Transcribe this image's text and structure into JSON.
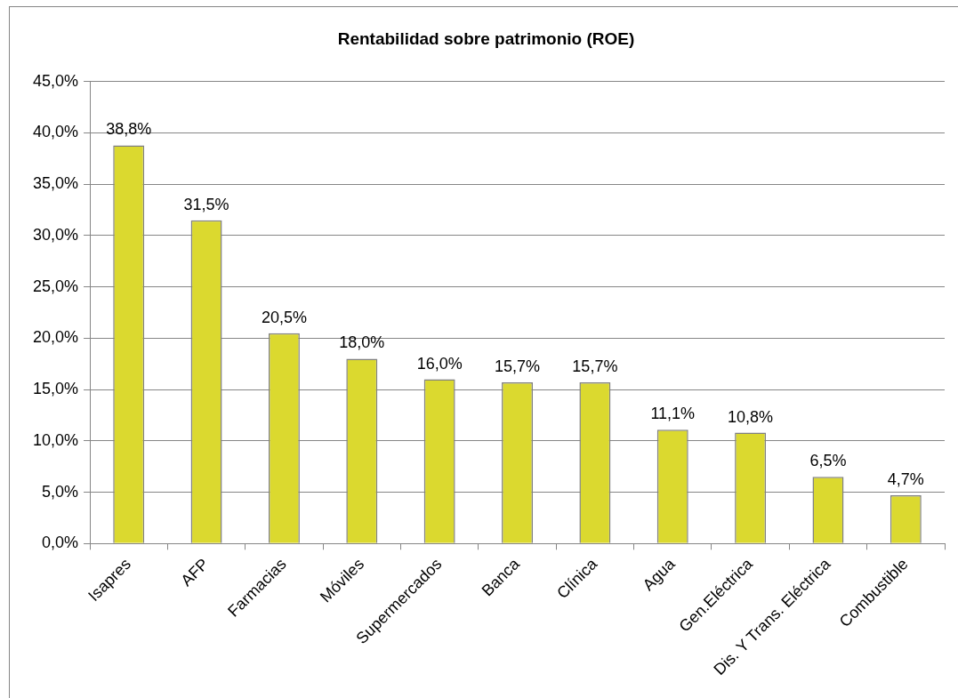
{
  "chart_data": {
    "type": "bar",
    "title": "Rentabilidad sobre patrimonio (ROE)",
    "categories": [
      "Isapres",
      "AFP",
      "Farmacias",
      "Móviles",
      "Supermercados",
      "Banca",
      "Clínica",
      "Agua",
      "Gen.Eléctrica",
      "Dis. Y Trans. Eléctrica",
      "Combustible"
    ],
    "values": [
      38.8,
      31.5,
      20.5,
      18.0,
      16.0,
      15.7,
      15.7,
      11.1,
      10.8,
      6.5,
      4.7
    ],
    "value_labels": [
      "38,8%",
      "31,5%",
      "20,5%",
      "18,0%",
      "16,0%",
      "15,7%",
      "15,7%",
      "11,1%",
      "10,8%",
      "6,5%",
      "4,7%"
    ],
    "color": "#dbd92f",
    "ylim": [
      0,
      45
    ],
    "yticks": [
      {
        "value": 0,
        "label": "0,0%"
      },
      {
        "value": 5,
        "label": "5,0%"
      },
      {
        "value": 10,
        "label": "10,0%"
      },
      {
        "value": 15,
        "label": "15,0%"
      },
      {
        "value": 20,
        "label": "20,0%"
      },
      {
        "value": 25,
        "label": "25,0%"
      },
      {
        "value": 30,
        "label": "30,0%"
      },
      {
        "value": 35,
        "label": "35,0%"
      },
      {
        "value": 40,
        "label": "40,0%"
      },
      {
        "value": 45,
        "label": "45,0%"
      }
    ],
    "grid": "y"
  }
}
